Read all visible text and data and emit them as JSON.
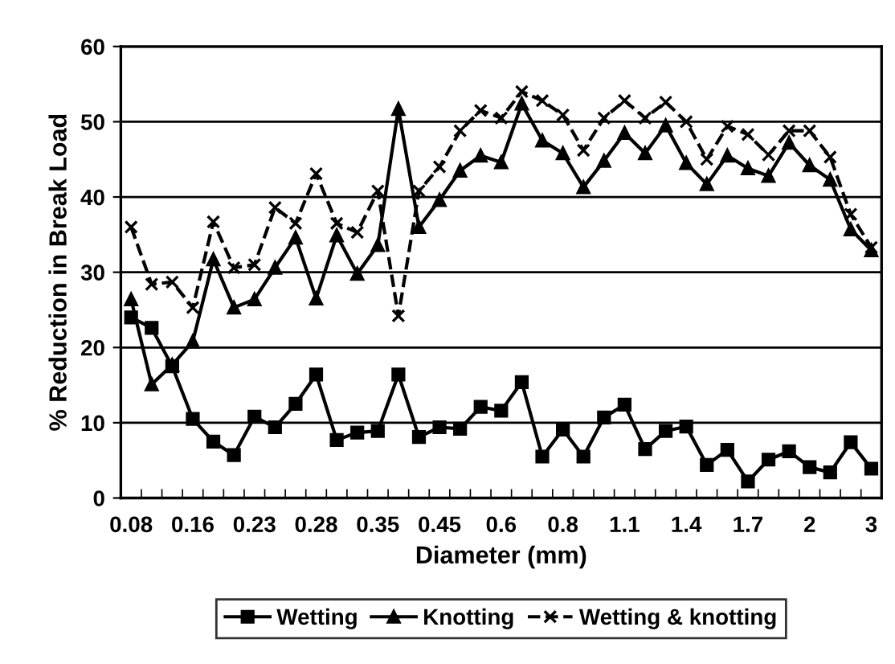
{
  "chart_data": {
    "type": "line",
    "xlabel": "Diameter (mm)",
    "ylabel": "% Reduction in Break Load",
    "categories": [
      "0.08",
      null,
      null,
      "0.16",
      null,
      null,
      "0.23",
      null,
      null,
      "0.28",
      null,
      null,
      "0.35",
      null,
      null,
      "0.45",
      null,
      null,
      "0.6",
      null,
      null,
      "0.8",
      null,
      null,
      "1.1",
      null,
      null,
      "1.4",
      null,
      null,
      "1.7",
      null,
      null,
      "2",
      null,
      null,
      "3"
    ],
    "series": [
      {
        "name": "Wetting",
        "color": "#000000",
        "marker": "square",
        "line_style": "solid",
        "values": [
          24,
          22.6,
          17.5,
          10.5,
          7.5,
          5.7,
          10.8,
          9.4,
          12.5,
          16.4,
          7.7,
          8.7,
          8.9,
          16.4,
          8.1,
          9.4,
          9.2,
          12.1,
          11.6,
          15.4,
          5.5,
          9.1,
          5.5,
          10.7,
          12.4,
          6.5,
          8.9,
          9.5,
          4.4,
          6.4,
          2.2,
          5.1,
          6.2,
          4.1,
          3.4,
          7.4,
          3.9
        ]
      },
      {
        "name": "Knotting",
        "color": "#000000",
        "marker": "triangle",
        "line_style": "solid",
        "values": [
          26.4,
          15.1,
          17.7,
          20.8,
          31.7,
          25.3,
          26.4,
          30.6,
          34.6,
          26.5,
          34.9,
          29.8,
          33.6,
          51.7,
          36,
          39.6,
          43.5,
          45.5,
          44.6,
          52.4,
          47.5,
          45.8,
          41.3,
          44.8,
          48.5,
          45.8,
          49.5,
          44.5,
          41.7,
          45.5,
          43.8,
          42.8,
          47.2,
          44.2,
          42.3,
          35.7,
          32.9
        ]
      },
      {
        "name": "Wetting & knotting",
        "color": "#000000",
        "marker": "cross",
        "line_style": "dashed",
        "values": [
          36,
          28.4,
          28.7,
          25.3,
          36.7,
          30.6,
          31,
          38.6,
          36.5,
          43.1,
          36.5,
          35.3,
          40.8,
          24.2,
          40.8,
          44,
          48.8,
          51.5,
          50.5,
          54,
          52.8,
          50.9,
          46.2,
          50.5,
          52.8,
          50.5,
          52.6,
          50,
          45,
          49.4,
          48.3,
          45.6,
          48.8,
          48.8,
          45.3,
          37.7,
          33.3
        ]
      }
    ],
    "ylim": [
      0,
      60
    ],
    "yticks": [
      0,
      10,
      20,
      30,
      40,
      50,
      60
    ],
    "grid": "y",
    "legend": "bottom"
  }
}
